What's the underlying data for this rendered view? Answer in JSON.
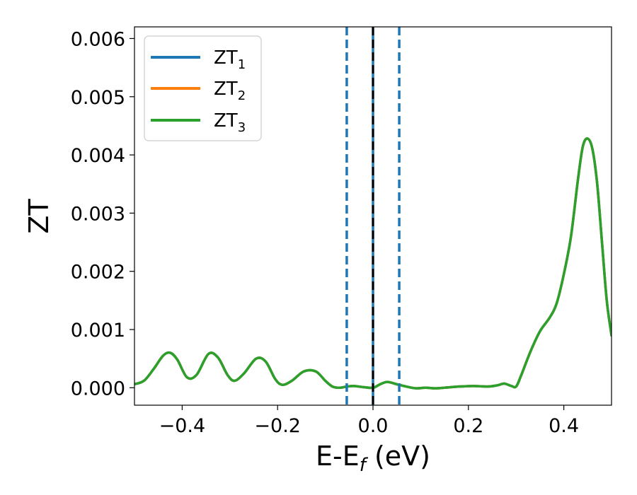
{
  "chart_data": {
    "type": "line",
    "xlabel": {
      "main": "E-E",
      "sub": "f",
      "unit": " (eV)"
    },
    "ylabel": "ZT",
    "xlim": [
      -0.5,
      0.5
    ],
    "ylim": [
      -0.0003,
      0.0062
    ],
    "xticks": [
      -0.4,
      -0.2,
      0.0,
      0.2,
      0.4
    ],
    "xtick_labels": [
      "−0.4",
      "−0.2",
      "0.0",
      "0.2",
      "0.4"
    ],
    "yticks": [
      0.0,
      0.001,
      0.002,
      0.003,
      0.004,
      0.005,
      0.006
    ],
    "ytick_labels": [
      "0.000",
      "0.001",
      "0.002",
      "0.003",
      "0.004",
      "0.005",
      "0.006"
    ],
    "grid": false,
    "legend_position": "top-left",
    "series": [
      {
        "name": "ZT",
        "sub": "1",
        "color": "#1f77b4"
      },
      {
        "name": "ZT",
        "sub": "2",
        "color": "#ff7f0e"
      },
      {
        "name": "ZT",
        "sub": "3",
        "color": "#2ca02c"
      }
    ],
    "curve": {
      "x": [
        -0.5,
        -0.48,
        -0.46,
        -0.44,
        -0.425,
        -0.41,
        -0.39,
        -0.37,
        -0.345,
        -0.325,
        -0.305,
        -0.29,
        -0.27,
        -0.245,
        -0.225,
        -0.205,
        -0.19,
        -0.17,
        -0.145,
        -0.12,
        -0.1,
        -0.085,
        -0.07,
        -0.055,
        -0.04,
        -0.02,
        0.0,
        0.015,
        0.03,
        0.05,
        0.07,
        0.09,
        0.11,
        0.13,
        0.15,
        0.18,
        0.21,
        0.24,
        0.26,
        0.275,
        0.29,
        0.3,
        0.31,
        0.33,
        0.35,
        0.37,
        0.385,
        0.4,
        0.415,
        0.43,
        0.44,
        0.45,
        0.46,
        0.47,
        0.48,
        0.49,
        0.5
      ],
      "y": [
        6e-05,
        0.00012,
        0.00032,
        0.00055,
        0.0006,
        0.00048,
        0.00018,
        0.00022,
        0.00058,
        0.00052,
        0.00022,
        0.00012,
        0.00025,
        0.0005,
        0.00045,
        0.00015,
        5e-05,
        0.00012,
        0.00028,
        0.00028,
        0.00012,
        2e-05,
        0.0,
        2e-05,
        3e-05,
        1e-05,
        0.0,
        6e-05,
        0.0001,
        6e-05,
        2e-05,
        -1e-05,
        0.0,
        -1e-05,
        0.0,
        2e-05,
        3e-05,
        2e-05,
        4e-05,
        7e-05,
        3e-05,
        2e-05,
        0.0002,
        0.00062,
        0.00097,
        0.0012,
        0.00145,
        0.00195,
        0.0026,
        0.0036,
        0.00415,
        0.00428,
        0.0041,
        0.0035,
        0.0025,
        0.0015,
        0.0009
      ]
    },
    "vlines": [
      {
        "x": -0.055,
        "style": "dashed",
        "color": "#1f77b4"
      },
      {
        "x": 0.055,
        "style": "dashed",
        "color": "#1f77b4"
      },
      {
        "x": 0.0,
        "style": "solid",
        "color": "#1f77b4"
      },
      {
        "x": 0.0,
        "style": "dashed",
        "color": "#000000"
      }
    ]
  }
}
